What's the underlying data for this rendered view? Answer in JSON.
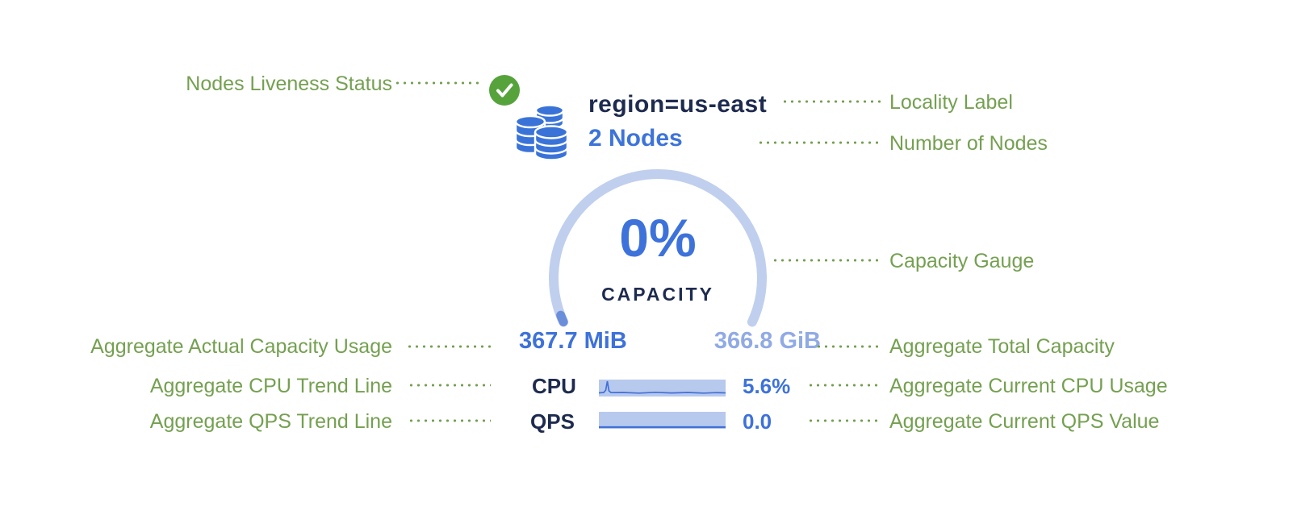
{
  "node_card": {
    "locality_label": "region=us-east",
    "nodes_count": "2 Nodes",
    "capacity_percent": "0%",
    "capacity_caption": "CAPACITY",
    "capacity_used": "367.7 MiB",
    "capacity_total": "366.8 GiB",
    "stats": [
      {
        "label": "CPU",
        "value": "5.6%"
      },
      {
        "label": "QPS",
        "value": "0.0"
      }
    ]
  },
  "icons": {
    "liveness": "check-circle",
    "nodes": "database-stack"
  },
  "annotations": {
    "left": [
      {
        "label": "Nodes Liveness Status"
      },
      {
        "label": "Aggregate Actual Capacity Usage"
      },
      {
        "label": "Aggregate CPU Trend Line"
      },
      {
        "label": "Aggregate QPS Trend Line"
      }
    ],
    "right": [
      {
        "label": "Locality Label"
      },
      {
        "label": "Number of Nodes"
      },
      {
        "label": "Capacity Gauge"
      },
      {
        "label": "Aggregate Total Capacity"
      },
      {
        "label": "Aggregate Current CPU Usage"
      },
      {
        "label": "Aggregate Current QPS Value"
      }
    ]
  },
  "sparklines": {
    "cpu": [
      [
        0,
        16.5
      ],
      [
        6,
        16
      ],
      [
        8.5,
        13
      ],
      [
        10.5,
        2
      ],
      [
        12.5,
        14
      ],
      [
        15,
        16.2
      ],
      [
        30,
        16
      ],
      [
        50,
        16.8
      ],
      [
        70,
        15.8
      ],
      [
        90,
        16.6
      ],
      [
        110,
        16
      ],
      [
        130,
        16.8
      ],
      [
        145,
        16.2
      ],
      [
        157,
        16.5
      ]
    ],
    "qps": [
      [
        0,
        19
      ],
      [
        157,
        19
      ]
    ]
  },
  "colors": {
    "annotation_green": "#74a050",
    "status_green": "#56a33c",
    "primary_blue": "#3d72da",
    "total_capacity_blue": "#90aae4",
    "gauge_arc": "#c0cfee",
    "gauge_tick": "#6b8edb",
    "spark_fill": "#b7c9ed",
    "spark_line": "#4170d8",
    "dark_navy": "#1e2b4f"
  }
}
